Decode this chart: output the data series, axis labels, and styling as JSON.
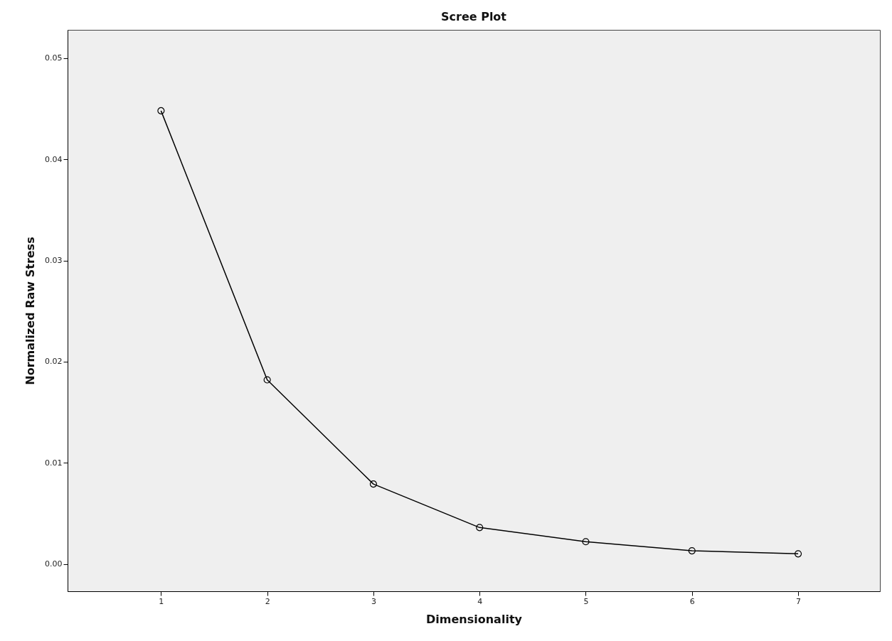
{
  "chart_data": {
    "type": "line",
    "title": "Scree Plot",
    "xlabel": "Dimensionality",
    "ylabel": "Normalized Raw Stress",
    "x": [
      1,
      2,
      3,
      4,
      5,
      6,
      7
    ],
    "series": [
      {
        "color": "#000000",
        "values": [
          0.0448,
          0.0182,
          0.0079,
          0.0036,
          0.0022,
          0.0013,
          0.001
        ]
      }
    ],
    "xlim": [
      0.12,
      7.77
    ],
    "xticks": [
      1,
      2,
      3,
      4,
      5,
      6,
      7
    ],
    "ylim": [
      -0.0027,
      0.0528
    ],
    "yticks": [
      {
        "value": 0,
        "label": "0.00"
      },
      {
        "value": 0.01,
        "label": "0.01"
      },
      {
        "value": 0.02,
        "label": "0.02"
      },
      {
        "value": 0.03,
        "label": "0.03"
      },
      {
        "value": 0.04,
        "label": "0.04"
      },
      {
        "value": 0.05,
        "label": "0.05"
      }
    ],
    "grid": false,
    "marker": "circle",
    "line_style": "solid"
  }
}
